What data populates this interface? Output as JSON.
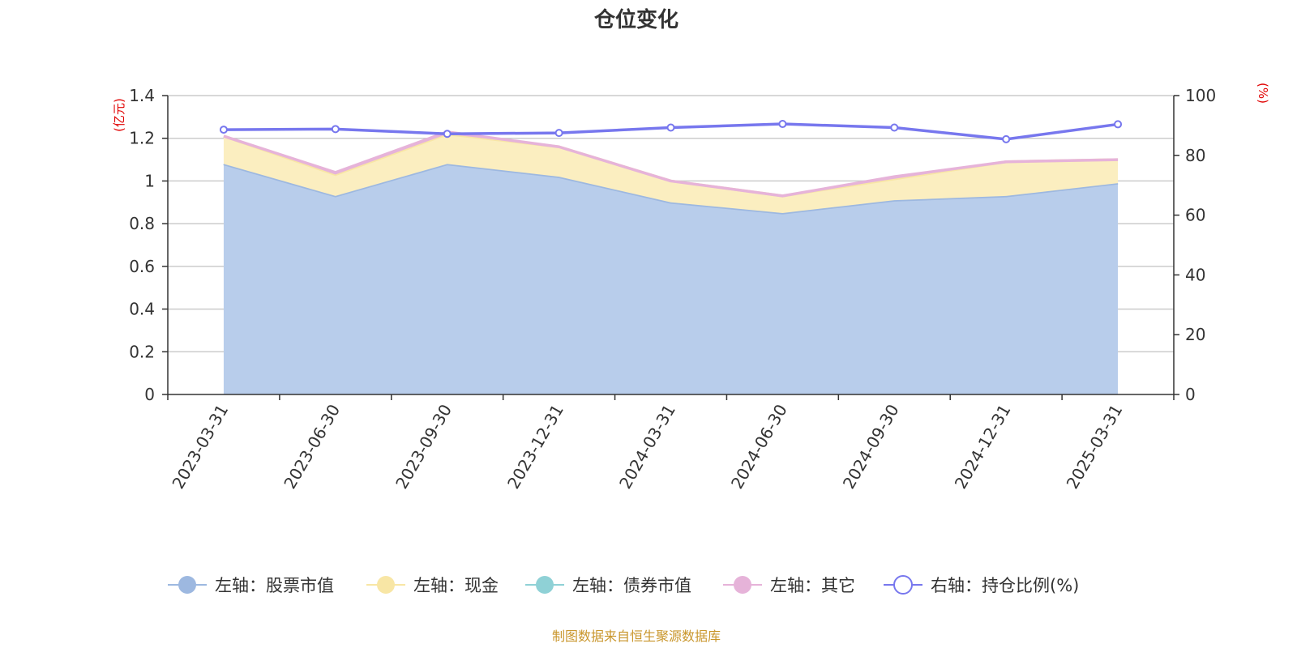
{
  "chart_data": {
    "type": "area",
    "title": "仓位变化",
    "source": "制图数据来自恒生聚源数据库",
    "x": [
      "2023-03-31",
      "2023-06-30",
      "2023-09-30",
      "2023-12-31",
      "2024-03-31",
      "2024-06-30",
      "2024-09-30",
      "2024-12-31",
      "2025-03-31"
    ],
    "left_axis": {
      "unit": "(亿元)",
      "min": 0,
      "max": 1.4,
      "ticks": [
        0,
        0.2,
        0.4,
        0.6,
        0.8,
        1,
        1.2,
        1.4
      ],
      "tick_labels": [
        "0",
        "0.2",
        "0.4",
        "0.6",
        "0.8",
        "1",
        "1.2",
        "1.4"
      ]
    },
    "right_axis": {
      "unit": "(%)",
      "min": 0,
      "max": 100,
      "ticks": [
        0,
        20,
        40,
        60,
        80,
        100
      ],
      "tick_labels": [
        "0",
        "20",
        "40",
        "60",
        "80",
        "100"
      ]
    },
    "series": [
      {
        "name": "左轴：股票市值",
        "axis": "left",
        "type": "area",
        "color": "#9db8e0",
        "fill": "#b8cdeb",
        "values": [
          1.08,
          0.93,
          1.08,
          1.02,
          0.9,
          0.85,
          0.91,
          0.93,
          0.99
        ]
      },
      {
        "name": "左轴：现金",
        "axis": "left",
        "type": "area",
        "color": "#f8e6a5",
        "fill": "#fbeec0",
        "values": [
          0.13,
          0.1,
          0.14,
          0.14,
          0.1,
          0.08,
          0.1,
          0.16,
          0.11
        ]
      },
      {
        "name": "左轴：债券市值",
        "axis": "left",
        "type": "area",
        "color": "#8fd1d6",
        "fill": "#8fd1d6",
        "values": [
          0,
          0,
          0,
          0,
          0,
          0,
          0,
          0,
          0
        ]
      },
      {
        "name": "左轴：其它",
        "axis": "left",
        "type": "area",
        "color": "#e6b3d9",
        "fill": "#e6b3d9",
        "values": [
          0.0,
          0.01,
          0.01,
          0.0,
          0.0,
          0.0,
          0.01,
          0.0,
          0.0
        ]
      },
      {
        "name": "右轴：持仓比例(%)",
        "axis": "right",
        "type": "line",
        "color": "#7777ee",
        "values": [
          88.6,
          88.8,
          87.2,
          87.5,
          89.3,
          90.5,
          89.3,
          85.4,
          90.4
        ]
      }
    ],
    "legend_position": "bottom",
    "grid": true
  }
}
